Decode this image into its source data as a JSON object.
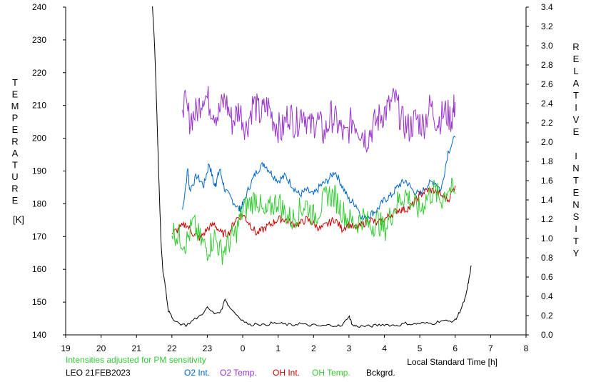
{
  "chart_data": {
    "type": "line",
    "left_axis_label": "TEMPERATURE",
    "left_axis_unit": "[K]",
    "right_axis_label": "RELATIVE INTENSITY",
    "xlabel": "Local Standard Time [h]",
    "xlim": [
      19,
      32
    ],
    "x_tick_values": [
      19,
      20,
      21,
      22,
      23,
      24,
      25,
      26,
      27,
      28,
      29,
      30,
      31,
      32
    ],
    "x_tick_labels": [
      "19",
      "20",
      "21",
      "22",
      "23",
      "0",
      "1",
      "2",
      "3",
      "4",
      "5",
      "6",
      "7",
      "8"
    ],
    "ylim_left": [
      140,
      240
    ],
    "y_left_ticks": [
      "140",
      "150",
      "160",
      "170",
      "180",
      "190",
      "200",
      "210",
      "220",
      "230",
      "240"
    ],
    "ylim_right": [
      0.0,
      3.4
    ],
    "y_right_ticks": [
      "0.0",
      "0.2",
      "0.4",
      "0.6",
      "0.8",
      "1.0",
      "1.2",
      "1.4",
      "1.6",
      "1.8",
      "2.0",
      "2.2",
      "2.4",
      "2.6",
      "2.8",
      "3.0",
      "3.2",
      "3.4"
    ],
    "grid": false,
    "note": "Intensities adjusted for PM sensitivity",
    "station": "LEO 21FEB2023",
    "series": [
      {
        "name": "O2 Int.",
        "axis": "right",
        "color": "#0066cc",
        "x": [
          22.3,
          22.45,
          22.5,
          22.7,
          22.9,
          23.05,
          23.2,
          23.25,
          23.35,
          23.5,
          23.7,
          23.9,
          24.0,
          24.2,
          24.4,
          24.6,
          24.8,
          25.0,
          25.2,
          25.4,
          25.6,
          25.8,
          26.0,
          26.2,
          26.4,
          26.6,
          26.8,
          27.0,
          27.2,
          27.4,
          27.6,
          27.8,
          28.0,
          28.2,
          28.4,
          28.6,
          28.8,
          29.0,
          29.2,
          29.4,
          29.6,
          29.8,
          30.0
        ],
        "y": [
          1.3,
          1.72,
          1.5,
          1.65,
          1.55,
          1.78,
          1.55,
          1.58,
          1.72,
          1.5,
          1.4,
          1.3,
          1.35,
          1.55,
          1.7,
          1.78,
          1.68,
          1.6,
          1.65,
          1.55,
          1.45,
          1.5,
          1.45,
          1.55,
          1.6,
          1.7,
          1.55,
          1.4,
          1.35,
          1.2,
          1.25,
          1.3,
          1.4,
          1.45,
          1.55,
          1.6,
          1.5,
          1.45,
          1.55,
          1.6,
          1.5,
          1.9,
          2.05
        ]
      },
      {
        "name": "O2 Temp.",
        "axis": "left",
        "color": "#9933cc",
        "x": [
          22.3,
          22.5,
          22.7,
          22.9,
          23.1,
          23.3,
          23.5,
          23.7,
          23.9,
          24.1,
          24.3,
          24.5,
          24.7,
          24.9,
          25.1,
          25.3,
          25.5,
          25.7,
          25.9,
          26.1,
          26.3,
          26.5,
          26.7,
          26.9,
          27.1,
          27.3,
          27.5,
          27.7,
          27.9,
          28.1,
          28.3,
          28.5,
          28.7,
          28.9,
          29.1,
          29.3,
          29.5,
          29.7,
          29.9,
          30.0
        ],
        "y": [
          212,
          206,
          208,
          214,
          210,
          207,
          212,
          205,
          209,
          203,
          211,
          207,
          210,
          205,
          202,
          208,
          204,
          209,
          203,
          206,
          201,
          207,
          204,
          200,
          206,
          203,
          200,
          204,
          207,
          209,
          212,
          205,
          203,
          206,
          204,
          210,
          205,
          208,
          206,
          211
        ]
      },
      {
        "name": "OH Int.",
        "axis": "right",
        "color": "#cc0000",
        "x": [
          22.0,
          22.2,
          22.4,
          22.6,
          22.8,
          23.0,
          23.2,
          23.4,
          23.6,
          23.8,
          24.0,
          24.2,
          24.4,
          24.6,
          24.8,
          25.0,
          25.2,
          25.4,
          25.6,
          25.8,
          26.0,
          26.2,
          26.4,
          26.6,
          26.8,
          27.0,
          27.2,
          27.4,
          27.6,
          27.8,
          28.0,
          28.2,
          28.4,
          28.6,
          28.8,
          29.0,
          29.2,
          29.4,
          29.6,
          29.8,
          30.0
        ],
        "y": [
          1.05,
          1.1,
          1.15,
          1.05,
          1.0,
          1.1,
          1.15,
          1.05,
          1.05,
          1.2,
          1.25,
          1.15,
          1.05,
          1.1,
          1.15,
          1.2,
          1.2,
          1.15,
          1.15,
          1.2,
          1.15,
          1.1,
          1.15,
          1.2,
          1.1,
          1.15,
          1.1,
          1.15,
          1.2,
          1.15,
          1.2,
          1.25,
          1.3,
          1.3,
          1.35,
          1.45,
          1.5,
          1.5,
          1.45,
          1.4,
          1.55
        ]
      },
      {
        "name": "OH Temp.",
        "axis": "left",
        "color": "#33cc33",
        "x": [
          22.0,
          22.2,
          22.4,
          22.6,
          22.8,
          23.0,
          23.2,
          23.4,
          23.6,
          23.8,
          24.0,
          24.2,
          24.4,
          24.6,
          24.8,
          25.0,
          25.2,
          25.4,
          25.6,
          25.8,
          26.0,
          26.2,
          26.4,
          26.6,
          26.8,
          27.0,
          27.2,
          27.4,
          27.6,
          27.8,
          28.0,
          28.2,
          28.4,
          28.6,
          28.8,
          29.0,
          29.2,
          29.4,
          29.6,
          29.8,
          30.0
        ],
        "y": [
          172,
          170,
          168,
          174,
          169,
          166,
          170,
          165,
          168,
          171,
          178,
          180,
          182,
          176,
          179,
          181,
          177,
          175,
          178,
          180,
          176,
          179,
          183,
          182,
          178,
          175,
          174,
          176,
          173,
          175,
          172,
          177,
          181,
          183,
          180,
          178,
          182,
          184,
          181,
          185,
          183
        ]
      },
      {
        "name": "Bckgrd.",
        "axis": "right",
        "color": "#000000",
        "x": [
          21.45,
          21.5,
          21.55,
          21.6,
          21.65,
          21.7,
          21.75,
          21.8,
          21.85,
          21.9,
          22.0,
          22.2,
          22.4,
          22.6,
          22.8,
          23.0,
          23.2,
          23.4,
          23.5,
          23.6,
          23.8,
          24.0,
          24.2,
          24.4,
          24.6,
          24.8,
          25.0,
          25.2,
          25.4,
          25.6,
          25.8,
          26.0,
          26.2,
          26.4,
          26.6,
          26.8,
          27.0,
          27.05,
          27.1,
          27.2,
          27.4,
          27.6,
          27.8,
          28.0,
          28.2,
          28.4,
          28.6,
          28.8,
          29.0,
          29.2,
          29.4,
          29.6,
          29.8,
          30.0,
          30.1,
          30.2,
          30.3,
          30.35,
          30.4,
          30.45
        ],
        "y": [
          3.4,
          3.1,
          2.6,
          2.0,
          1.4,
          0.9,
          0.65,
          0.55,
          0.4,
          0.25,
          0.18,
          0.12,
          0.1,
          0.15,
          0.2,
          0.28,
          0.22,
          0.25,
          0.38,
          0.3,
          0.22,
          0.15,
          0.1,
          0.12,
          0.1,
          0.12,
          0.12,
          0.11,
          0.1,
          0.12,
          0.1,
          0.1,
          0.09,
          0.1,
          0.1,
          0.09,
          0.2,
          0.15,
          0.1,
          0.09,
          0.09,
          0.09,
          0.1,
          0.11,
          0.1,
          0.1,
          0.12,
          0.11,
          0.12,
          0.12,
          0.12,
          0.15,
          0.14,
          0.15,
          0.22,
          0.3,
          0.4,
          0.5,
          0.6,
          0.72
        ]
      }
    ]
  }
}
